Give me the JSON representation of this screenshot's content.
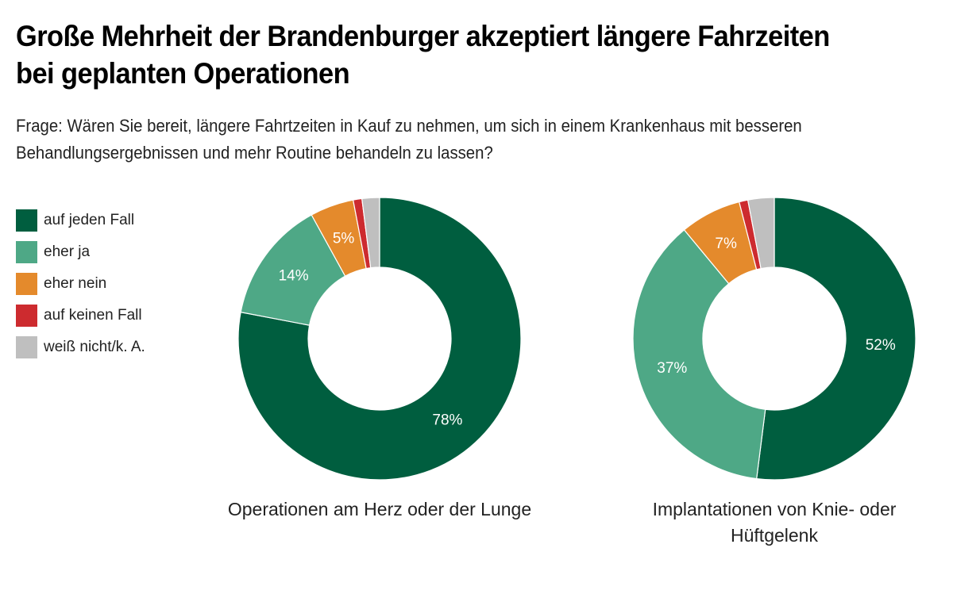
{
  "header": {
    "title": "Große Mehrheit der Brandenburger akzeptiert längere Fahrzeiten bei geplanten Operationen",
    "subtitle": "Frage: Wären Sie bereit, längere Fahrtzeiten in Kauf zu nehmen, um sich in einem Krankenhaus mit besseren Behandlungsergebnissen und mehr Routine behandeln zu lassen?"
  },
  "legend": [
    {
      "label": "auf jeden Fall",
      "color": "#005e3f"
    },
    {
      "label": "eher ja",
      "color": "#4ea886"
    },
    {
      "label": "eher nein",
      "color": "#e48a2c"
    },
    {
      "label": "auf keinen Fall",
      "color": "#cd2b2f"
    },
    {
      "label": "weiß nicht/k. A.",
      "color": "#bfbfbf"
    }
  ],
  "chart_data": [
    {
      "type": "pie",
      "variant": "donut",
      "title": "Operationen am Herz oder der Lunge",
      "categories": [
        "auf jeden Fall",
        "eher ja",
        "eher nein",
        "auf keinen Fall",
        "weiß nicht/k. A."
      ],
      "values": [
        78,
        14,
        5,
        1,
        2
      ],
      "labels": [
        "78%",
        "14%",
        "5%",
        "",
        ""
      ],
      "unit": "%",
      "direction": "clockwise from top"
    },
    {
      "type": "pie",
      "variant": "donut",
      "title": "Implantationen von Knie- oder Hüftgelenk",
      "categories": [
        "auf jeden Fall",
        "eher ja",
        "eher nein",
        "auf keinen Fall",
        "weiß nicht/k. A."
      ],
      "values": [
        52,
        37,
        7,
        1,
        3
      ],
      "labels": [
        "52%",
        "37%",
        "7%",
        "",
        ""
      ],
      "unit": "%",
      "direction": "clockwise from top"
    }
  ]
}
